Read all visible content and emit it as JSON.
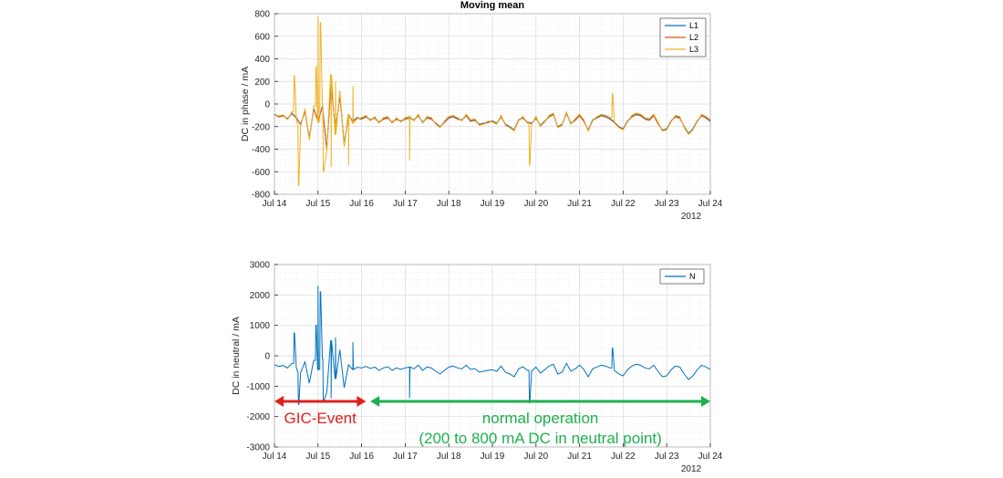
{
  "chart_data": [
    {
      "type": "line",
      "title": "Moving mean",
      "ylabel": "DC in phase / mA",
      "ylim": [
        -800,
        800
      ],
      "yticks": [
        -800,
        -600,
        -400,
        -200,
        0,
        200,
        400,
        600,
        800
      ],
      "xlim": [
        "Jul 14",
        "Jul 24"
      ],
      "xtick_labels": [
        "Jul 14",
        "Jul 15",
        "Jul 16",
        "Jul 17",
        "Jul 18",
        "Jul 19",
        "Jul 20",
        "Jul 21",
        "Jul 22",
        "Jul 23",
        "Jul 24"
      ],
      "x_year_label": "2012",
      "grid": true,
      "legend": "top-right",
      "x_day_offsets": [
        0,
        0.1,
        0.2,
        0.3,
        0.4,
        0.5,
        0.6,
        0.7,
        0.8,
        0.9,
        1.0,
        1.1,
        1.2,
        1.3,
        1.4,
        1.5,
        1.6,
        1.7,
        1.8,
        1.9,
        2.0,
        2.1,
        2.2,
        2.3,
        2.4,
        2.5,
        2.6,
        2.7,
        2.8,
        2.9,
        3.0,
        3.1,
        3.2,
        3.3,
        3.4,
        3.5,
        3.6,
        3.7,
        3.8,
        3.9,
        4.0,
        4.1,
        4.2,
        4.3,
        4.4,
        4.5,
        4.6,
        4.7,
        4.8,
        4.9,
        5.0,
        5.1,
        5.2,
        5.3,
        5.4,
        5.5,
        5.6,
        5.7,
        5.8,
        5.9,
        6.0,
        6.1,
        6.2,
        6.3,
        6.4,
        6.5,
        6.6,
        6.7,
        6.8,
        6.9,
        7.0,
        7.1,
        7.2,
        7.3,
        7.4,
        7.5,
        7.6,
        7.7,
        7.8,
        7.9,
        8.0,
        8.1,
        8.2,
        8.3,
        8.4,
        8.5,
        8.6,
        8.7,
        8.8,
        8.9,
        9.0,
        9.1,
        9.2,
        9.3,
        9.4,
        9.5,
        9.6,
        9.7,
        9.8,
        9.9,
        10.0
      ],
      "series": [
        {
          "name": "L1",
          "color": "#0072BD",
          "values": [
            -90,
            -110,
            -100,
            -130,
            -80,
            -120,
            -180,
            -60,
            -300,
            -40,
            -150,
            -20,
            -400,
            200,
            -250,
            80,
            -350,
            -100,
            -150,
            -120,
            -130,
            -110,
            -140,
            -120,
            -160,
            -130,
            -120,
            -160,
            -130,
            -150,
            -130,
            -120,
            -140,
            -100,
            -160,
            -120,
            -130,
            -170,
            -200,
            -160,
            -120,
            -110,
            -130,
            -140,
            -100,
            -150,
            -140,
            -180,
            -170,
            -160,
            -150,
            -170,
            -110,
            -180,
            -200,
            -230,
            -140,
            -120,
            -160,
            -170,
            -120,
            -190,
            -150,
            -110,
            -90,
            -200,
            -180,
            -80,
            -170,
            -140,
            -100,
            -150,
            -230,
            -140,
            -120,
            -100,
            -110,
            -130,
            -160,
            -200,
            -220,
            -150,
            -110,
            -90,
            -100,
            -130,
            -140,
            -100,
            -170,
            -230,
            -220,
            -150,
            -110,
            -120,
            -200,
            -260,
            -220,
            -150,
            -100,
            -120,
            -150
          ]
        },
        {
          "name": "L2",
          "color": "#D95319",
          "values": [
            -95,
            -115,
            -105,
            -135,
            -85,
            -125,
            -185,
            -65,
            -305,
            -45,
            -155,
            -25,
            -405,
            195,
            -255,
            75,
            -355,
            -105,
            -155,
            -125,
            -135,
            -115,
            -145,
            -125,
            -165,
            -135,
            -125,
            -165,
            -135,
            -155,
            -135,
            -125,
            -145,
            -105,
            -165,
            -125,
            -135,
            -175,
            -205,
            -165,
            -125,
            -115,
            -135,
            -145,
            -105,
            -155,
            -145,
            -185,
            -175,
            -165,
            -155,
            -175,
            -115,
            -185,
            -205,
            -235,
            -145,
            -125,
            -165,
            -175,
            -125,
            -195,
            -155,
            -115,
            -95,
            -205,
            -185,
            -85,
            -175,
            -145,
            -105,
            -155,
            -235,
            -145,
            -125,
            -105,
            -115,
            -135,
            -165,
            -205,
            -225,
            -155,
            -115,
            -95,
            -105,
            -135,
            -145,
            -105,
            -175,
            -235,
            -225,
            -155,
            -115,
            -125,
            -205,
            -265,
            -225,
            -155,
            -105,
            -125,
            -155
          ]
        },
        {
          "name": "L3",
          "color": "#EDB120",
          "values": [
            -100,
            -105,
            -95,
            -140,
            -70,
            -130,
            -200,
            -40,
            -320,
            -20,
            -160,
            0,
            -420,
            260,
            -270,
            120,
            -380,
            -90,
            -170,
            -130,
            -120,
            -100,
            -150,
            -110,
            -170,
            -120,
            -110,
            -170,
            -120,
            -160,
            -120,
            -110,
            -150,
            -90,
            -170,
            -110,
            -120,
            -180,
            -210,
            -150,
            -110,
            -100,
            -120,
            -150,
            -90,
            -140,
            -130,
            -190,
            -180,
            -150,
            -160,
            -180,
            -100,
            -190,
            -210,
            -240,
            -150,
            -110,
            -170,
            -180,
            -110,
            -200,
            -160,
            -100,
            -80,
            -210,
            -190,
            -70,
            -180,
            -130,
            -90,
            -140,
            -240,
            -150,
            -110,
            -90,
            -100,
            -120,
            -170,
            -210,
            -230,
            -160,
            -100,
            -80,
            -90,
            -120,
            -130,
            -90,
            -160,
            -240,
            -230,
            -160,
            -100,
            -110,
            -210,
            -270,
            -230,
            -160,
            -90,
            -110,
            -140
          ]
        }
      ],
      "spikes": [
        {
          "series": "L3",
          "x": 0.45,
          "y": 250
        },
        {
          "series": "L3",
          "x": 0.55,
          "y": -720
        },
        {
          "series": "L3",
          "x": 0.95,
          "y": 330
        },
        {
          "series": "L3",
          "x": 1.0,
          "y": 780
        },
        {
          "series": "L3",
          "x": 1.05,
          "y": 720
        },
        {
          "series": "L3",
          "x": 1.12,
          "y": -600
        },
        {
          "series": "L3",
          "x": 1.3,
          "y": -560
        },
        {
          "series": "L3",
          "x": 1.4,
          "y": 200
        },
        {
          "series": "L3",
          "x": 1.7,
          "y": -540
        },
        {
          "series": "L3",
          "x": 1.8,
          "y": 160
        },
        {
          "series": "L3",
          "x": 3.1,
          "y": -500
        },
        {
          "series": "L3",
          "x": 5.85,
          "y": -540
        },
        {
          "series": "L3",
          "x": 7.75,
          "y": 90
        }
      ]
    },
    {
      "type": "line",
      "title": "",
      "ylabel": "DC in neutral / mA",
      "ylim": [
        -3000,
        3000
      ],
      "yticks": [
        -3000,
        -2000,
        -1000,
        0,
        1000,
        2000,
        3000
      ],
      "xlim": [
        "Jul 14",
        "Jul 24"
      ],
      "xtick_labels": [
        "Jul 14",
        "Jul 15",
        "Jul 16",
        "Jul 17",
        "Jul 18",
        "Jul 19",
        "Jul 20",
        "Jul 21",
        "Jul 22",
        "Jul 23",
        "Jul 24"
      ],
      "x_year_label": "2012",
      "grid": true,
      "legend": "top-right",
      "x_day_offsets": [
        0,
        0.1,
        0.2,
        0.3,
        0.4,
        0.5,
        0.6,
        0.7,
        0.8,
        0.9,
        1.0,
        1.1,
        1.2,
        1.3,
        1.4,
        1.5,
        1.6,
        1.7,
        1.8,
        1.9,
        2.0,
        2.1,
        2.2,
        2.3,
        2.4,
        2.5,
        2.6,
        2.7,
        2.8,
        2.9,
        3.0,
        3.1,
        3.2,
        3.3,
        3.4,
        3.5,
        3.6,
        3.7,
        3.8,
        3.9,
        4.0,
        4.1,
        4.2,
        4.3,
        4.4,
        4.5,
        4.6,
        4.7,
        4.8,
        4.9,
        5.0,
        5.1,
        5.2,
        5.3,
        5.4,
        5.5,
        5.6,
        5.7,
        5.8,
        5.9,
        6.0,
        6.1,
        6.2,
        6.3,
        6.4,
        6.5,
        6.6,
        6.7,
        6.8,
        6.9,
        7.0,
        7.1,
        7.2,
        7.3,
        7.4,
        7.5,
        7.6,
        7.7,
        7.8,
        7.9,
        8.0,
        8.1,
        8.2,
        8.3,
        8.4,
        8.5,
        8.6,
        8.7,
        8.8,
        8.9,
        9.0,
        9.1,
        9.2,
        9.3,
        9.4,
        9.5,
        9.6,
        9.7,
        9.8,
        9.9,
        10.0
      ],
      "series": [
        {
          "name": "N",
          "color": "#0072BD",
          "values": [
            -300,
            -350,
            -320,
            -400,
            -250,
            -380,
            -550,
            -200,
            -900,
            -150,
            -450,
            -100,
            -1200,
            500,
            -750,
            200,
            -1050,
            -300,
            -450,
            -380,
            -400,
            -350,
            -420,
            -370,
            -480,
            -400,
            -360,
            -480,
            -400,
            -450,
            -400,
            -370,
            -430,
            -310,
            -480,
            -370,
            -400,
            -510,
            -600,
            -480,
            -370,
            -340,
            -400,
            -430,
            -310,
            -450,
            -420,
            -540,
            -510,
            -480,
            -460,
            -510,
            -340,
            -540,
            -600,
            -690,
            -430,
            -360,
            -480,
            -510,
            -370,
            -570,
            -460,
            -340,
            -280,
            -600,
            -540,
            -250,
            -510,
            -430,
            -310,
            -450,
            -690,
            -430,
            -370,
            -310,
            -340,
            -400,
            -480,
            -600,
            -660,
            -460,
            -340,
            -280,
            -310,
            -400,
            -430,
            -310,
            -510,
            -690,
            -660,
            -460,
            -340,
            -370,
            -600,
            -780,
            -660,
            -460,
            -310,
            -370,
            -450
          ]
        }
      ],
      "spikes": [
        {
          "series": "N",
          "x": 0.45,
          "y": 750
        },
        {
          "series": "N",
          "x": 0.55,
          "y": -1600
        },
        {
          "series": "N",
          "x": 0.95,
          "y": 1000
        },
        {
          "series": "N",
          "x": 1.0,
          "y": 2300
        },
        {
          "series": "N",
          "x": 1.05,
          "y": 2100
        },
        {
          "series": "N",
          "x": 1.12,
          "y": -1500
        },
        {
          "series": "N",
          "x": 1.3,
          "y": -1400
        },
        {
          "series": "N",
          "x": 1.4,
          "y": 600
        },
        {
          "series": "N",
          "x": 1.8,
          "y": 450
        },
        {
          "series": "N",
          "x": 3.1,
          "y": -1400
        },
        {
          "series": "N",
          "x": 5.85,
          "y": -1550
        },
        {
          "series": "N",
          "x": 7.75,
          "y": 250
        }
      ],
      "annotations": [
        {
          "text": "GIC-Event",
          "color": "#E02020",
          "from": 0.0,
          "to": 2.1
        },
        {
          "text": "normal operation",
          "subtext": "(200 to 800 mA DC in neutral point)",
          "color": "#1DB04F",
          "from": 2.2,
          "to": 10.0
        }
      ]
    }
  ]
}
